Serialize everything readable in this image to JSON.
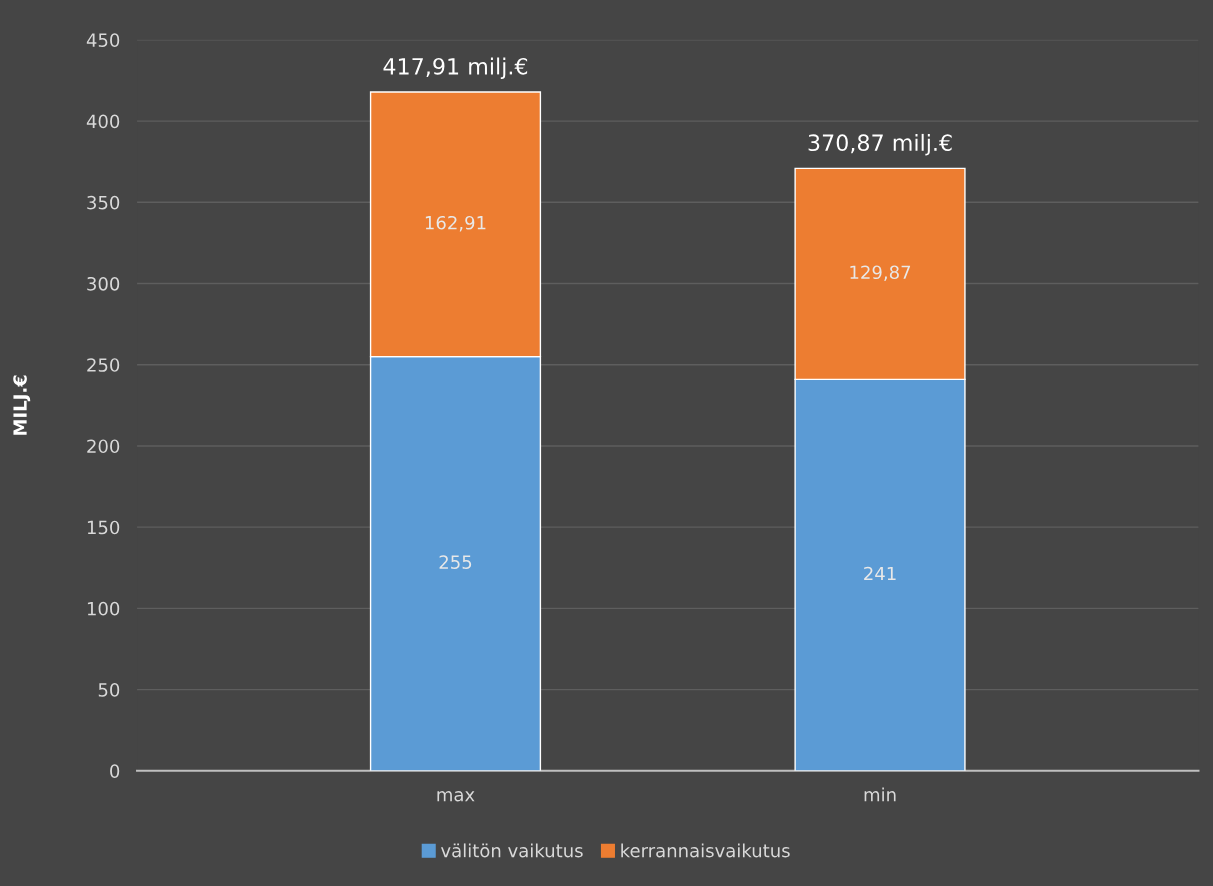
{
  "chart_data": {
    "type": "bar",
    "stacked": true,
    "ylabel": "MILJ.€",
    "categories": [
      "max",
      "min"
    ],
    "series": [
      {
        "name": "välitön vaikutus",
        "color": "#5b9bd5",
        "values": [
          255,
          241
        ],
        "value_labels": [
          "255",
          "241"
        ]
      },
      {
        "name": "kerrannaisvaikutus",
        "color": "#ed7d31",
        "values": [
          162.91,
          129.87
        ],
        "value_labels": [
          "162,91",
          "129,87"
        ]
      }
    ],
    "totals": [
      "417,91 milj.€",
      "370,87 milj.€"
    ],
    "ylim": [
      0,
      450
    ],
    "yticks": [
      0,
      50,
      100,
      150,
      200,
      250,
      300,
      350,
      400,
      450
    ],
    "grid": "y",
    "legend": "bottom"
  }
}
